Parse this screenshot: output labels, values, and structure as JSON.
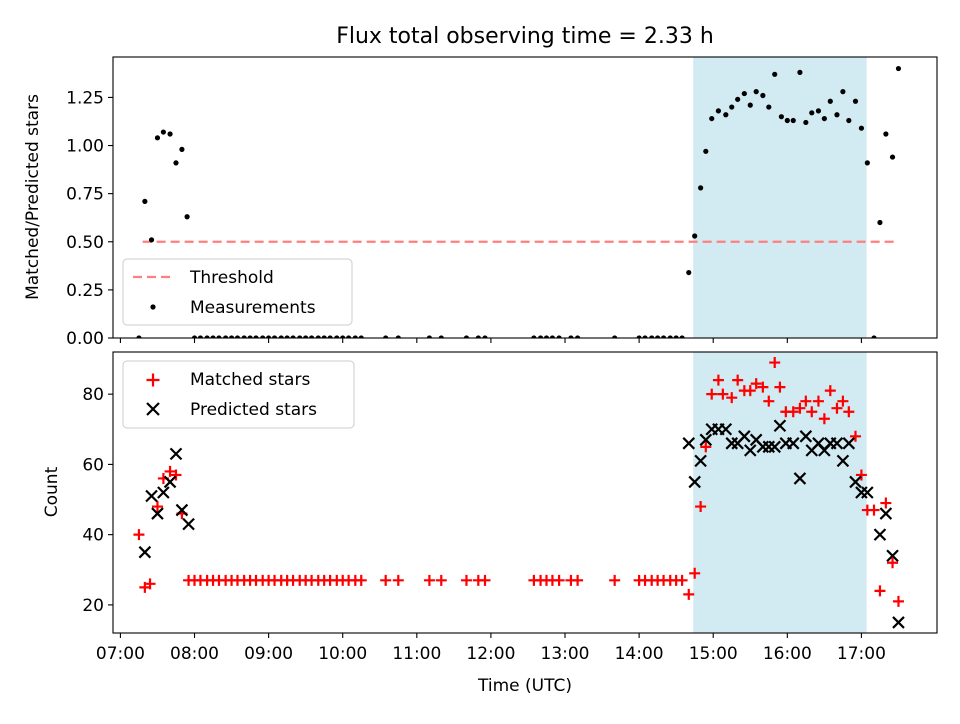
{
  "chart_data": [
    {
      "type": "scatter",
      "title": "Flux total observing time = 2.33 h",
      "xlabel": "",
      "ylabel": "Matched/Predicted stars",
      "ylim": [
        0,
        1.46
      ],
      "yticks": [
        0.0,
        0.25,
        0.5,
        0.75,
        1.0,
        1.25
      ],
      "ytick_labels": [
        "0.00",
        "0.25",
        "0.50",
        "0.75",
        "1.00",
        "1.25"
      ],
      "x_unit": "hours UTC",
      "xlim": [
        6.9,
        18.02
      ],
      "shaded_span": [
        14.73,
        17.07
      ],
      "shade_color": "#add8e6",
      "legend_placement": "lower-left",
      "threshold": {
        "name": "Threshold",
        "value": 0.5,
        "x_range": [
          7.3,
          17.5
        ],
        "color": "#ff7f7f"
      },
      "series": [
        {
          "name": "Measurements",
          "marker": "dot",
          "color": "#000000",
          "points": [
            [
              7.25,
              0.0
            ],
            [
              7.33,
              0.71
            ],
            [
              7.42,
              0.51
            ],
            [
              7.5,
              1.04
            ],
            [
              7.58,
              1.07
            ],
            [
              7.67,
              1.06
            ],
            [
              7.75,
              0.91
            ],
            [
              7.83,
              0.98
            ],
            [
              7.9,
              0.63
            ],
            [
              8.0,
              0.0
            ],
            [
              8.08,
              0.0
            ],
            [
              8.17,
              0.0
            ],
            [
              8.25,
              0.0
            ],
            [
              8.33,
              0.0
            ],
            [
              8.42,
              0.0
            ],
            [
              8.5,
              0.0
            ],
            [
              8.58,
              0.0
            ],
            [
              8.67,
              0.0
            ],
            [
              8.75,
              0.0
            ],
            [
              8.83,
              0.0
            ],
            [
              8.92,
              0.0
            ],
            [
              9.0,
              0.0
            ],
            [
              9.08,
              0.0
            ],
            [
              9.17,
              0.0
            ],
            [
              9.25,
              0.0
            ],
            [
              9.33,
              0.0
            ],
            [
              9.42,
              0.0
            ],
            [
              9.5,
              0.0
            ],
            [
              9.58,
              0.0
            ],
            [
              9.67,
              0.0
            ],
            [
              9.75,
              0.0
            ],
            [
              9.83,
              0.0
            ],
            [
              9.92,
              0.0
            ],
            [
              10.0,
              0.0
            ],
            [
              10.08,
              0.0
            ],
            [
              10.17,
              0.0
            ],
            [
              10.25,
              0.0
            ],
            [
              10.58,
              0.0
            ],
            [
              10.75,
              0.0
            ],
            [
              11.17,
              0.0
            ],
            [
              11.33,
              0.0
            ],
            [
              11.67,
              0.0
            ],
            [
              11.83,
              0.0
            ],
            [
              11.92,
              0.0
            ],
            [
              12.58,
              0.0
            ],
            [
              12.67,
              0.0
            ],
            [
              12.75,
              0.0
            ],
            [
              12.83,
              0.0
            ],
            [
              12.92,
              0.0
            ],
            [
              13.08,
              0.0
            ],
            [
              13.17,
              0.0
            ],
            [
              13.67,
              0.0
            ],
            [
              14.0,
              0.0
            ],
            [
              14.08,
              0.0
            ],
            [
              14.17,
              0.0
            ],
            [
              14.25,
              0.0
            ],
            [
              14.33,
              0.0
            ],
            [
              14.42,
              0.0
            ],
            [
              14.5,
              0.0
            ],
            [
              14.58,
              0.0
            ],
            [
              14.67,
              0.34
            ],
            [
              14.75,
              0.53
            ],
            [
              14.83,
              0.78
            ],
            [
              14.9,
              0.97
            ],
            [
              14.98,
              1.14
            ],
            [
              15.07,
              1.18
            ],
            [
              15.17,
              1.16
            ],
            [
              15.25,
              1.2
            ],
            [
              15.33,
              1.24
            ],
            [
              15.42,
              1.27
            ],
            [
              15.5,
              1.21
            ],
            [
              15.58,
              1.28
            ],
            [
              15.67,
              1.26
            ],
            [
              15.75,
              1.2
            ],
            [
              15.83,
              1.37
            ],
            [
              15.92,
              1.15
            ],
            [
              16.0,
              1.13
            ],
            [
              16.08,
              1.13
            ],
            [
              16.17,
              1.38
            ],
            [
              16.25,
              1.12
            ],
            [
              16.33,
              1.17
            ],
            [
              16.42,
              1.18
            ],
            [
              16.5,
              1.14
            ],
            [
              16.58,
              1.23
            ],
            [
              16.67,
              1.16
            ],
            [
              16.75,
              1.28
            ],
            [
              16.83,
              1.13
            ],
            [
              16.92,
              1.23
            ],
            [
              17.0,
              1.09
            ],
            [
              17.08,
              0.91
            ],
            [
              17.17,
              0.0
            ],
            [
              17.25,
              0.6
            ],
            [
              17.33,
              1.06
            ],
            [
              17.42,
              0.94
            ],
            [
              17.5,
              1.4
            ]
          ]
        }
      ]
    },
    {
      "type": "scatter",
      "title": "",
      "xlabel": "Time (UTC)",
      "ylabel": "Count",
      "ylim": [
        12,
        92
      ],
      "yticks": [
        20,
        40,
        60,
        80
      ],
      "ytick_labels": [
        "20",
        "40",
        "60",
        "80"
      ],
      "x_unit": "hours UTC",
      "xlim": [
        6.9,
        18.02
      ],
      "xticks": [
        7,
        8,
        9,
        10,
        11,
        12,
        13,
        14,
        15,
        16,
        17
      ],
      "xtick_labels": [
        "07:00",
        "08:00",
        "09:00",
        "10:00",
        "11:00",
        "12:00",
        "13:00",
        "14:00",
        "15:00",
        "16:00",
        "17:00"
      ],
      "shaded_span": [
        14.73,
        17.07
      ],
      "shade_color": "#add8e6",
      "legend_placement": "upper-left",
      "series": [
        {
          "name": "Matched stars",
          "marker": "plus",
          "color": "#ff0000",
          "points": [
            [
              7.25,
              40
            ],
            [
              7.33,
              25
            ],
            [
              7.4,
              26
            ],
            [
              7.5,
              48
            ],
            [
              7.58,
              56
            ],
            [
              7.67,
              58
            ],
            [
              7.75,
              57
            ],
            [
              7.83,
              46
            ],
            [
              7.92,
              27
            ],
            [
              8.0,
              27
            ],
            [
              8.08,
              27
            ],
            [
              8.17,
              27
            ],
            [
              8.25,
              27
            ],
            [
              8.33,
              27
            ],
            [
              8.42,
              27
            ],
            [
              8.5,
              27
            ],
            [
              8.58,
              27
            ],
            [
              8.67,
              27
            ],
            [
              8.75,
              27
            ],
            [
              8.83,
              27
            ],
            [
              8.92,
              27
            ],
            [
              9.0,
              27
            ],
            [
              9.08,
              27
            ],
            [
              9.17,
              27
            ],
            [
              9.25,
              27
            ],
            [
              9.33,
              27
            ],
            [
              9.42,
              27
            ],
            [
              9.5,
              27
            ],
            [
              9.58,
              27
            ],
            [
              9.67,
              27
            ],
            [
              9.75,
              27
            ],
            [
              9.83,
              27
            ],
            [
              9.92,
              27
            ],
            [
              10.0,
              27
            ],
            [
              10.08,
              27
            ],
            [
              10.17,
              27
            ],
            [
              10.25,
              27
            ],
            [
              10.58,
              27
            ],
            [
              10.75,
              27
            ],
            [
              11.17,
              27
            ],
            [
              11.33,
              27
            ],
            [
              11.67,
              27
            ],
            [
              11.83,
              27
            ],
            [
              11.92,
              27
            ],
            [
              12.58,
              27
            ],
            [
              12.67,
              27
            ],
            [
              12.75,
              27
            ],
            [
              12.83,
              27
            ],
            [
              12.92,
              27
            ],
            [
              13.08,
              27
            ],
            [
              13.17,
              27
            ],
            [
              13.67,
              27
            ],
            [
              14.0,
              27
            ],
            [
              14.08,
              27
            ],
            [
              14.17,
              27
            ],
            [
              14.25,
              27
            ],
            [
              14.33,
              27
            ],
            [
              14.42,
              27
            ],
            [
              14.5,
              27
            ],
            [
              14.58,
              27
            ],
            [
              14.67,
              23
            ],
            [
              14.75,
              29
            ],
            [
              14.83,
              48
            ],
            [
              14.9,
              65
            ],
            [
              14.98,
              80
            ],
            [
              15.07,
              84
            ],
            [
              15.13,
              80
            ],
            [
              15.25,
              79
            ],
            [
              15.33,
              84
            ],
            [
              15.42,
              81
            ],
            [
              15.5,
              81
            ],
            [
              15.58,
              83
            ],
            [
              15.67,
              82
            ],
            [
              15.75,
              78
            ],
            [
              15.83,
              89
            ],
            [
              15.9,
              82
            ],
            [
              15.98,
              75
            ],
            [
              16.08,
              75
            ],
            [
              16.17,
              76
            ],
            [
              16.25,
              78
            ],
            [
              16.33,
              75
            ],
            [
              16.42,
              78
            ],
            [
              16.5,
              73
            ],
            [
              16.58,
              81
            ],
            [
              16.67,
              76
            ],
            [
              16.75,
              78
            ],
            [
              16.83,
              75
            ],
            [
              16.92,
              68
            ],
            [
              17.0,
              57
            ],
            [
              17.08,
              47
            ],
            [
              17.17,
              47
            ],
            [
              17.25,
              24
            ],
            [
              17.33,
              49
            ],
            [
              17.42,
              32
            ],
            [
              17.5,
              21
            ]
          ]
        },
        {
          "name": "Predicted stars",
          "marker": "x",
          "color": "#000000",
          "points": [
            [
              7.33,
              35
            ],
            [
              7.42,
              51
            ],
            [
              7.5,
              46
            ],
            [
              7.58,
              52
            ],
            [
              7.67,
              55
            ],
            [
              7.75,
              63
            ],
            [
              7.83,
              47
            ],
            [
              7.92,
              43
            ],
            [
              14.67,
              66
            ],
            [
              14.75,
              55
            ],
            [
              14.83,
              61
            ],
            [
              14.9,
              67
            ],
            [
              14.98,
              70
            ],
            [
              15.07,
              70
            ],
            [
              15.17,
              70
            ],
            [
              15.25,
              66
            ],
            [
              15.33,
              66
            ],
            [
              15.42,
              68
            ],
            [
              15.5,
              64
            ],
            [
              15.58,
              67
            ],
            [
              15.67,
              65
            ],
            [
              15.75,
              65
            ],
            [
              15.83,
              65
            ],
            [
              15.9,
              71
            ],
            [
              15.98,
              66
            ],
            [
              16.08,
              66
            ],
            [
              16.17,
              56
            ],
            [
              16.25,
              68
            ],
            [
              16.33,
              64
            ],
            [
              16.42,
              66
            ],
            [
              16.5,
              64
            ],
            [
              16.58,
              66
            ],
            [
              16.67,
              66
            ],
            [
              16.75,
              61
            ],
            [
              16.83,
              66
            ],
            [
              16.92,
              55
            ],
            [
              17.0,
              52
            ],
            [
              17.08,
              52
            ],
            [
              17.25,
              40
            ],
            [
              17.33,
              46
            ],
            [
              17.42,
              34
            ],
            [
              17.5,
              15
            ]
          ]
        }
      ]
    }
  ]
}
